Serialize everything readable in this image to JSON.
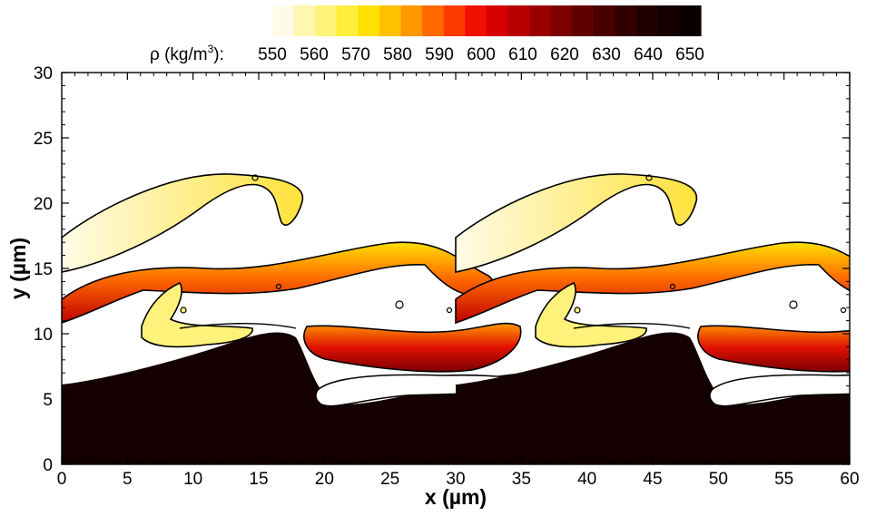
{
  "chart_data": {
    "type": "heatmap",
    "title": "",
    "xlabel": "x (µm)",
    "ylabel": "y (µm)",
    "xlim": [
      0,
      60
    ],
    "ylim": [
      0,
      30
    ],
    "x_ticks": [
      "0",
      "5",
      "10",
      "15",
      "20",
      "25",
      "30",
      "35",
      "40",
      "45",
      "50",
      "55",
      "60"
    ],
    "y_ticks": [
      "0",
      "5",
      "10",
      "15",
      "20",
      "25",
      "30"
    ],
    "colorbar": {
      "title_prefix": "ρ (kg/m",
      "title_sup": "3",
      "title_suffix": "):",
      "labels": [
        "550",
        "560",
        "570",
        "580",
        "590",
        "600",
        "610",
        "620",
        "630",
        "640",
        "650"
      ],
      "colors": [
        "#fffbe6",
        "#fff6b0",
        "#fff27a",
        "#ffee3c",
        "#ffe000",
        "#ffc000",
        "#ff9800",
        "#ff6a00",
        "#ff3a00",
        "#f01000",
        "#d60000",
        "#b80000",
        "#9a0000",
        "#7c0000",
        "#600000",
        "#480000",
        "#330000",
        "#200000",
        "#140000",
        "#0a0000"
      ]
    },
    "contour_level_kg_per_m3": 550,
    "regions": [
      {
        "name": "dense-base",
        "density": 650
      },
      {
        "name": "upper-wave-tongue",
        "density": 555
      },
      {
        "name": "middle-wave-band",
        "density": 600
      },
      {
        "name": "lower-finger",
        "density": 610
      }
    ],
    "period_um": 30,
    "grid": false,
    "legend_position": "top-center"
  }
}
